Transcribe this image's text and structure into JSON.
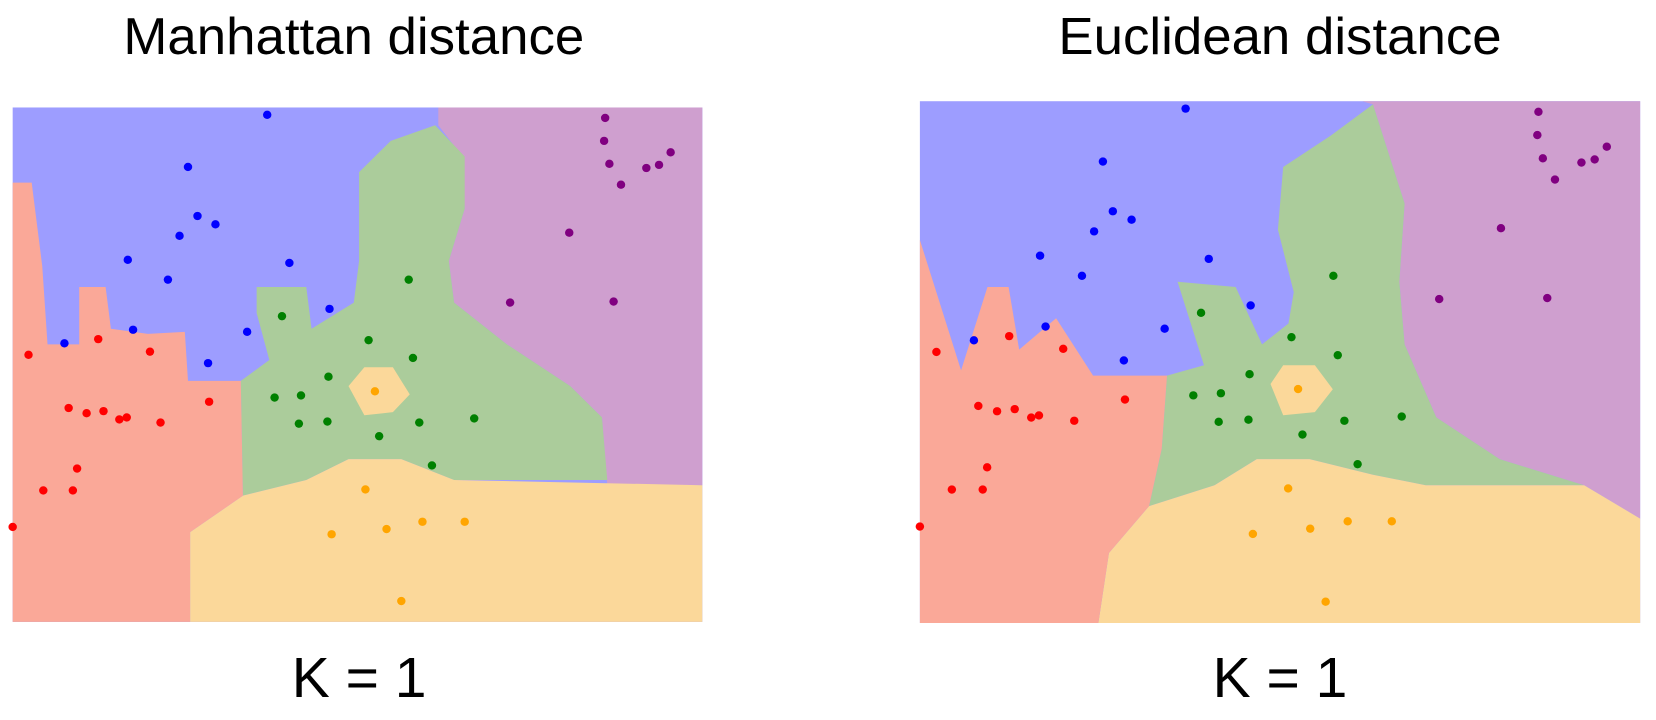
{
  "panels": [
    {
      "title": "Manhattan distance",
      "caption": "K = 1"
    },
    {
      "title": "Euclidean distance",
      "caption": "K = 1"
    }
  ]
}
